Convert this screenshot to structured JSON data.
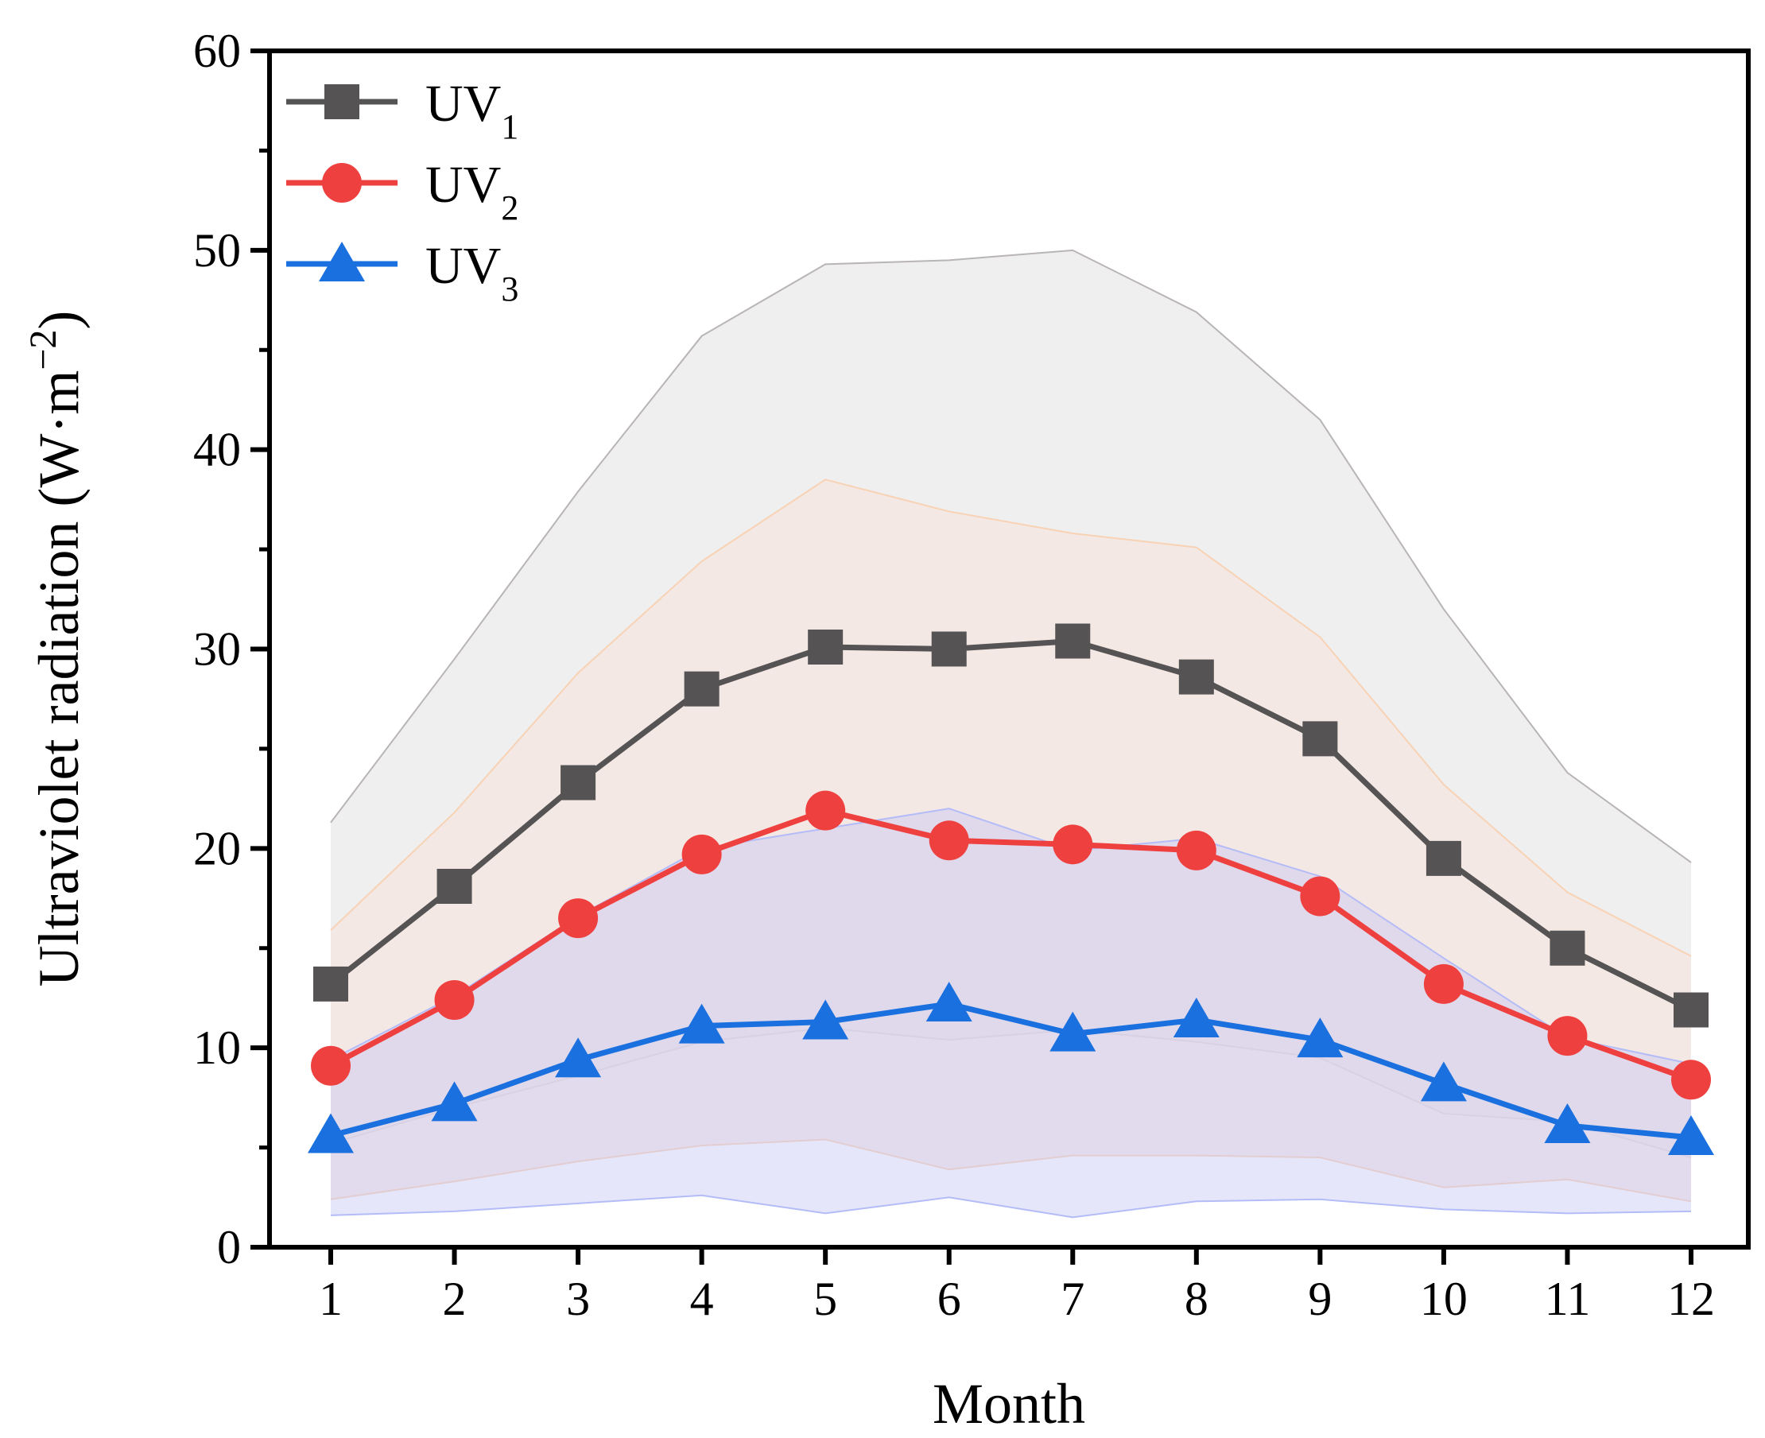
{
  "chart_data": {
    "type": "line",
    "title": "",
    "xlabel": "Month",
    "ylabel": "Ultraviolet radiation (W·m",
    "ylabel_sup": "−2",
    "ylabel_close": ")",
    "x": [
      1,
      2,
      3,
      4,
      5,
      6,
      7,
      8,
      9,
      10,
      11,
      12
    ],
    "xticks": [
      "1",
      "2",
      "3",
      "4",
      "5",
      "6",
      "7",
      "8",
      "9",
      "10",
      "11",
      "12"
    ],
    "ylim": [
      0,
      60
    ],
    "yticks": [
      "0",
      "10",
      "20",
      "30",
      "40",
      "50",
      "60"
    ],
    "ytick_values": [
      0,
      10,
      20,
      30,
      40,
      50,
      60
    ],
    "yminor_values": [
      5,
      15,
      25,
      35,
      45,
      55
    ],
    "grid": false,
    "legend_position": "top-left",
    "series": [
      {
        "name": "UV",
        "subscript": "1",
        "marker": "square",
        "color": "#555353",
        "values": [
          13.2,
          18.1,
          23.3,
          28.0,
          30.1,
          30.0,
          30.4,
          28.6,
          25.5,
          19.5,
          15.0,
          11.9
        ],
        "band_upper": [
          21.3,
          29.5,
          37.9,
          45.7,
          49.3,
          49.5,
          50.0,
          46.9,
          41.5,
          32.0,
          23.8,
          19.3
        ],
        "band_lower": [
          5.2,
          7.0,
          8.6,
          10.3,
          11.0,
          10.4,
          10.9,
          10.3,
          9.5,
          6.7,
          6.3,
          4.5
        ],
        "band_fill": "#efefef",
        "band_edge": "#b8b4b8"
      },
      {
        "name": "UV",
        "subscript": "2",
        "marker": "circle",
        "color": "#ef4040",
        "values": [
          9.1,
          12.4,
          16.5,
          19.7,
          21.9,
          20.4,
          20.2,
          19.9,
          17.6,
          13.2,
          10.6,
          8.4
        ],
        "band_upper": [
          15.9,
          21.8,
          28.8,
          34.4,
          38.5,
          36.9,
          35.8,
          35.1,
          30.6,
          23.2,
          17.8,
          14.6
        ],
        "band_lower": [
          2.4,
          3.3,
          4.3,
          5.1,
          5.4,
          3.9,
          4.6,
          4.6,
          4.5,
          3.0,
          3.4,
          2.3
        ],
        "band_fill": "#f6e6e0",
        "band_edge": "#f8d2b4"
      },
      {
        "name": "UV",
        "subscript": "3",
        "marker": "triangle",
        "color": "#1a70de",
        "values": [
          5.6,
          7.2,
          9.4,
          11.1,
          11.3,
          12.2,
          10.7,
          11.4,
          10.4,
          8.2,
          6.1,
          5.5
        ],
        "band_upper": [
          9.4,
          12.6,
          16.6,
          20.0,
          21.0,
          22.0,
          19.9,
          20.5,
          18.6,
          14.5,
          10.5,
          9.2
        ],
        "band_lower": [
          1.6,
          1.8,
          2.2,
          2.6,
          1.7,
          2.5,
          1.5,
          2.3,
          2.4,
          1.9,
          1.7,
          1.8
        ],
        "band_fill": "#c8c8f4",
        "band_edge": "#b4bcf8"
      }
    ]
  }
}
